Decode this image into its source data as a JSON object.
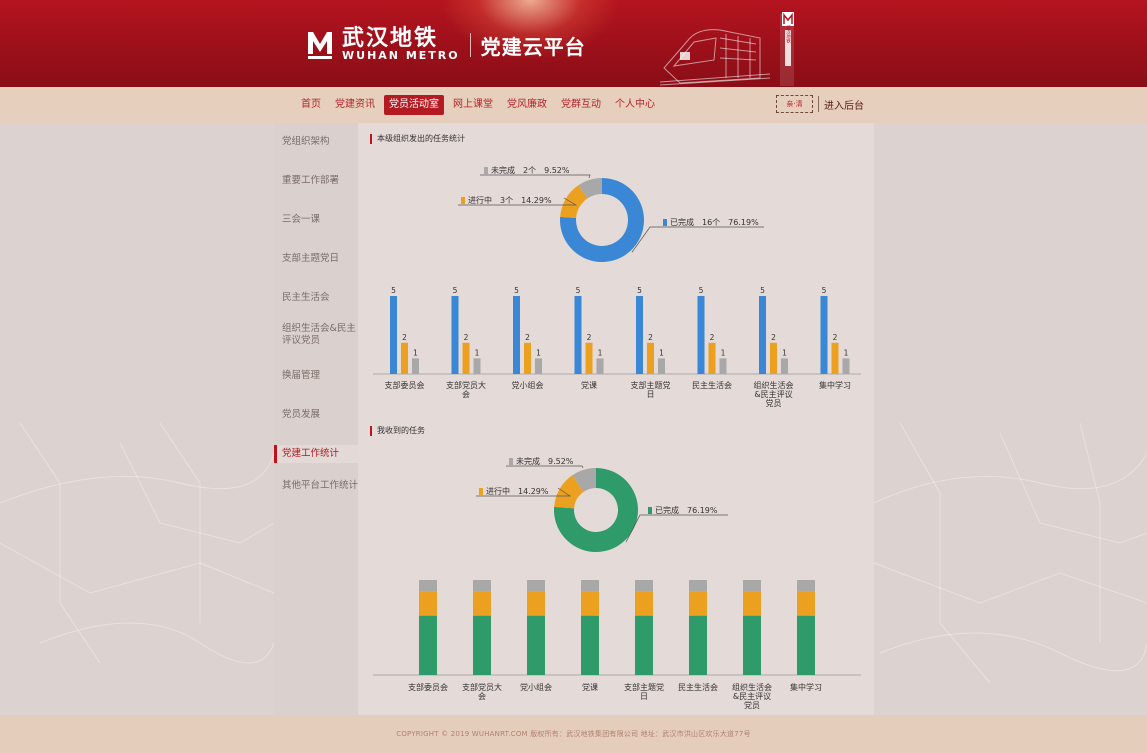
{
  "header": {
    "logo_cn": "武汉地铁",
    "logo_en": "WUHAN METRO",
    "platform_title": "党建云平台",
    "train_label": "武汉地铁"
  },
  "nav": {
    "items": [
      {
        "label": "首页"
      },
      {
        "label": "党建资讯"
      },
      {
        "label": "党员活动室"
      },
      {
        "label": "网上课堂"
      },
      {
        "label": "党风廉政"
      },
      {
        "label": "党群互动"
      },
      {
        "label": "个人中心"
      }
    ],
    "active_index": 2,
    "seal_text": "亲·清",
    "admin_label": "进入后台"
  },
  "sidebar": {
    "items": [
      {
        "label": "党组织架构"
      },
      {
        "label": "重要工作部署"
      },
      {
        "label": "三会一课"
      },
      {
        "label": "支部主题党日"
      },
      {
        "label": "民主生活会"
      },
      {
        "label": "组织生活会&民主评议党员"
      },
      {
        "label": "换届管理"
      },
      {
        "label": "党员发展"
      },
      {
        "label": "党建工作统计"
      },
      {
        "label": "其他平台工作统计"
      }
    ],
    "active_index": 8
  },
  "section1": {
    "title": "本级组织发出的任务统计"
  },
  "section2": {
    "title": "我收到的任务"
  },
  "chart_data": [
    {
      "type": "pie",
      "title": "",
      "donut": true,
      "slices": [
        {
          "name": "已完成",
          "count": "16个",
          "percent": "76.19%",
          "value": 76.19,
          "color": "#3a87d6"
        },
        {
          "name": "进行中",
          "count": "3个",
          "percent": "14.29%",
          "value": 14.29,
          "color": "#eba020"
        },
        {
          "name": "未完成",
          "count": "2个",
          "percent": "9.52%",
          "value": 9.52,
          "color": "#a8a8a8"
        }
      ]
    },
    {
      "type": "bar",
      "title": "",
      "categories": [
        "支部委员会",
        "支部党员大会",
        "党小组会",
        "党课",
        "支部主题党日",
        "民主生活会",
        "组织生活会&民主评议党员",
        "集中学习"
      ],
      "category_lines": [
        [
          "支部委员会"
        ],
        [
          "支部党员大",
          "会"
        ],
        [
          "党小组会"
        ],
        [
          "党课"
        ],
        [
          "支部主题党",
          "日"
        ],
        [
          "民主生活会"
        ],
        [
          "组织生活会",
          "&民主评议",
          "党员"
        ],
        [
          "集中学习"
        ]
      ],
      "series": [
        {
          "values": [
            5,
            5,
            5,
            5,
            5,
            5,
            5,
            5
          ],
          "color": "#3a87d6"
        },
        {
          "values": [
            2,
            2,
            2,
            2,
            2,
            2,
            2,
            2
          ],
          "color": "#eba020"
        },
        {
          "values": [
            1,
            1,
            1,
            1,
            1,
            1,
            1,
            1
          ],
          "color": "#a8a8a8"
        }
      ],
      "ylim": [
        0,
        5
      ]
    },
    {
      "type": "pie",
      "title": "",
      "donut": true,
      "slices": [
        {
          "name": "已完成",
          "percent": "76.19%",
          "value": 76.19,
          "color": "#2f9a6a"
        },
        {
          "name": "进行中",
          "percent": "14.29%",
          "value": 14.29,
          "color": "#eba020"
        },
        {
          "name": "未完成",
          "percent": "9.52%",
          "value": 9.52,
          "color": "#a8a8a8"
        }
      ]
    },
    {
      "type": "bar",
      "stacked": true,
      "title": "",
      "categories": [
        "支部委员会",
        "支部党员大会",
        "党小组会",
        "党课",
        "支部主题党日",
        "民主生活会",
        "组织生活会&民主评议党员",
        "集中学习"
      ],
      "category_lines": [
        [
          "支部委员会"
        ],
        [
          "支部党员大",
          "会"
        ],
        [
          "党小组会"
        ],
        [
          "党课"
        ],
        [
          "支部主题党",
          "日"
        ],
        [
          "民主生活会"
        ],
        [
          "组织生活会",
          "&民主评议",
          "党员"
        ],
        [
          "集中学习"
        ]
      ],
      "series": [
        {
          "values": [
            5,
            5,
            5,
            5,
            5,
            5,
            5,
            5
          ],
          "color": "#2f9a6a"
        },
        {
          "values": [
            2,
            2,
            2,
            2,
            2,
            2,
            2,
            2
          ],
          "color": "#eba020"
        },
        {
          "values": [
            1,
            1,
            1,
            1,
            1,
            1,
            1,
            1
          ],
          "color": "#a8a8a8"
        }
      ]
    }
  ],
  "footer": {
    "text": "COPYRIGHT © 2019 WUHANRT.COM  版权所有：武汉地铁集团有限公司  地址：武汉市洪山区欢乐大道77号"
  }
}
